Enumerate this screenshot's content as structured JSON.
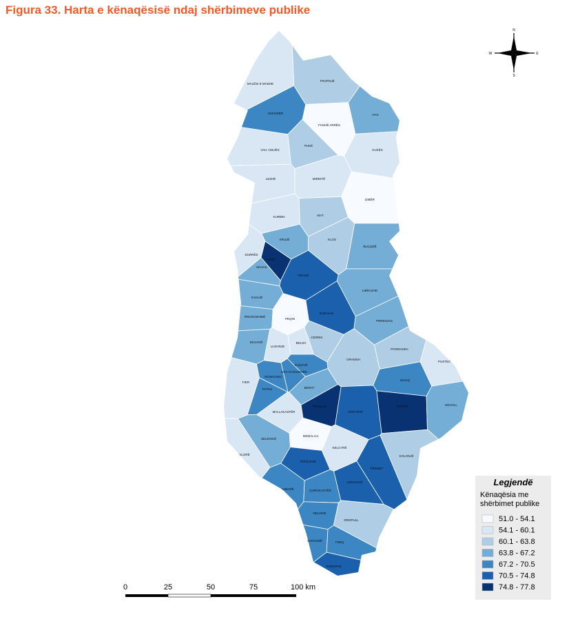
{
  "title": "Figura 33. Harta e kënaqësisë ndaj shërbimeve publike",
  "compass": {
    "north": "N",
    "west": "W",
    "east": "E",
    "south": "S"
  },
  "regions": [
    {
      "label": "MALËSI E MADHE",
      "color": "#d9e7f5"
    },
    {
      "label": "TROPOJË",
      "color": "#b0cde6"
    },
    {
      "label": "SHKODËR",
      "color": "#3b86c3"
    },
    {
      "label": "FUSHË ARRËS",
      "color": "#f7fbff"
    },
    {
      "label": "HAS",
      "color": "#74add5"
    },
    {
      "label": "VAU I DEJËS",
      "color": "#d9e7f5"
    },
    {
      "label": "PUKË",
      "color": "#b0cde6"
    },
    {
      "label": "KUKËS",
      "color": "#d9e7f5"
    },
    {
      "label": "LEZHË",
      "color": "#d9e7f5"
    },
    {
      "label": "MIRDITË",
      "color": "#d9e7f5"
    },
    {
      "label": "DIBËR",
      "color": "#f7fbff"
    },
    {
      "label": "KURBIN",
      "color": "#d9e7f5"
    },
    {
      "label": "MAT",
      "color": "#b0cde6"
    },
    {
      "label": "KRUJË",
      "color": "#74add5"
    },
    {
      "label": "KLOS",
      "color": "#b0cde6"
    },
    {
      "label": "BULQIZË",
      "color": "#74add5"
    },
    {
      "label": "DURRËS",
      "color": "#d9e7f5"
    },
    {
      "label": "VORË",
      "color": "#083272"
    },
    {
      "label": "SHIJAK",
      "color": "#74add5"
    },
    {
      "label": "TIRANË",
      "color": "#1a60ad"
    },
    {
      "label": "LIBRAZHD",
      "color": "#74add5"
    },
    {
      "label": "KAVAJË",
      "color": "#74add5"
    },
    {
      "label": "RROGOZHINË",
      "color": "#74add5"
    },
    {
      "label": "PEQIN",
      "color": "#f7fbff"
    },
    {
      "label": "ELBASAN",
      "color": "#1a60ad"
    },
    {
      "label": "PRRENJAS",
      "color": "#74add5"
    },
    {
      "label": "CERRIK",
      "color": "#b0cde6"
    },
    {
      "label": "BELSH",
      "color": "#d9e7f5"
    },
    {
      "label": "LUSHNJE",
      "color": "#d9e7f5"
    },
    {
      "label": "DIVJAKË",
      "color": "#74add5"
    },
    {
      "label": "POGRADEC",
      "color": "#b0cde6"
    },
    {
      "label": "GRAMSH",
      "color": "#b0cde6"
    },
    {
      "label": "PUSTEC",
      "color": "#d9e7f5"
    },
    {
      "label": "KUÇOVË",
      "color": "#3b86c3"
    },
    {
      "label": "URA VAJGURORE",
      "color": "#3b86c3"
    },
    {
      "label": "ROSKOVEC",
      "color": "#3b86c3"
    },
    {
      "label": "FIER",
      "color": "#d9e7f5"
    },
    {
      "label": "MALIQ",
      "color": "#3b86c3"
    },
    {
      "label": "PATOS",
      "color": "#3b86c3"
    },
    {
      "label": "BERAT",
      "color": "#74add5"
    },
    {
      "label": "POLIÇAN",
      "color": "#083272"
    },
    {
      "label": "SKRAPAR",
      "color": "#1a60ad"
    },
    {
      "label": "KORÇË",
      "color": "#083272"
    },
    {
      "label": "DEVOLL",
      "color": "#74add5"
    },
    {
      "label": "MALLAKASTËR",
      "color": "#d9e7f5"
    },
    {
      "label": "MEMALIAJ",
      "color": "#f7fbff"
    },
    {
      "label": "SELENICË",
      "color": "#74add5"
    },
    {
      "label": "KELCYRË",
      "color": "#d9e7f5"
    },
    {
      "label": "KOLONJË",
      "color": "#b0cde6"
    },
    {
      "label": "VLORË",
      "color": "#d9e7f5"
    },
    {
      "label": "TEPELENË",
      "color": "#1a60ad"
    },
    {
      "label": "PËRMET",
      "color": "#1a60ad"
    },
    {
      "label": "HIMARË",
      "color": "#3b86c3"
    },
    {
      "label": "GJIROKASTËR",
      "color": "#3b86c3"
    },
    {
      "label": "LIBOHOVË",
      "color": "#1a60ad"
    },
    {
      "label": "DELVINË",
      "color": "#3b86c3"
    },
    {
      "label": "DROPULL",
      "color": "#b0cde6"
    },
    {
      "label": "SARANDË",
      "color": "#3b86c3"
    },
    {
      "label": "FINIQ",
      "color": "#3b86c3"
    },
    {
      "label": "KONISPOL",
      "color": "#1a60ad"
    }
  ],
  "legend": {
    "title": "Legjendë",
    "subtitle_lines": [
      "Kënaqësia me",
      "shërbimet publike"
    ],
    "classes": [
      {
        "label": "51.0 - 54.1",
        "color": "#f7fbff"
      },
      {
        "label": "54.1 - 60.1",
        "color": "#d9e7f5"
      },
      {
        "label": "60.1 - 63.8",
        "color": "#b0cde6"
      },
      {
        "label": "63.8 - 67.2",
        "color": "#74add5"
      },
      {
        "label": "67.2 - 70.5",
        "color": "#3b86c3"
      },
      {
        "label": "70.5 - 74.8",
        "color": "#1a60ad"
      },
      {
        "label": "74.8 - 77.8",
        "color": "#083272"
      }
    ]
  },
  "scale_bar": [
    "0",
    "25",
    "50",
    "75",
    "100 km"
  ]
}
